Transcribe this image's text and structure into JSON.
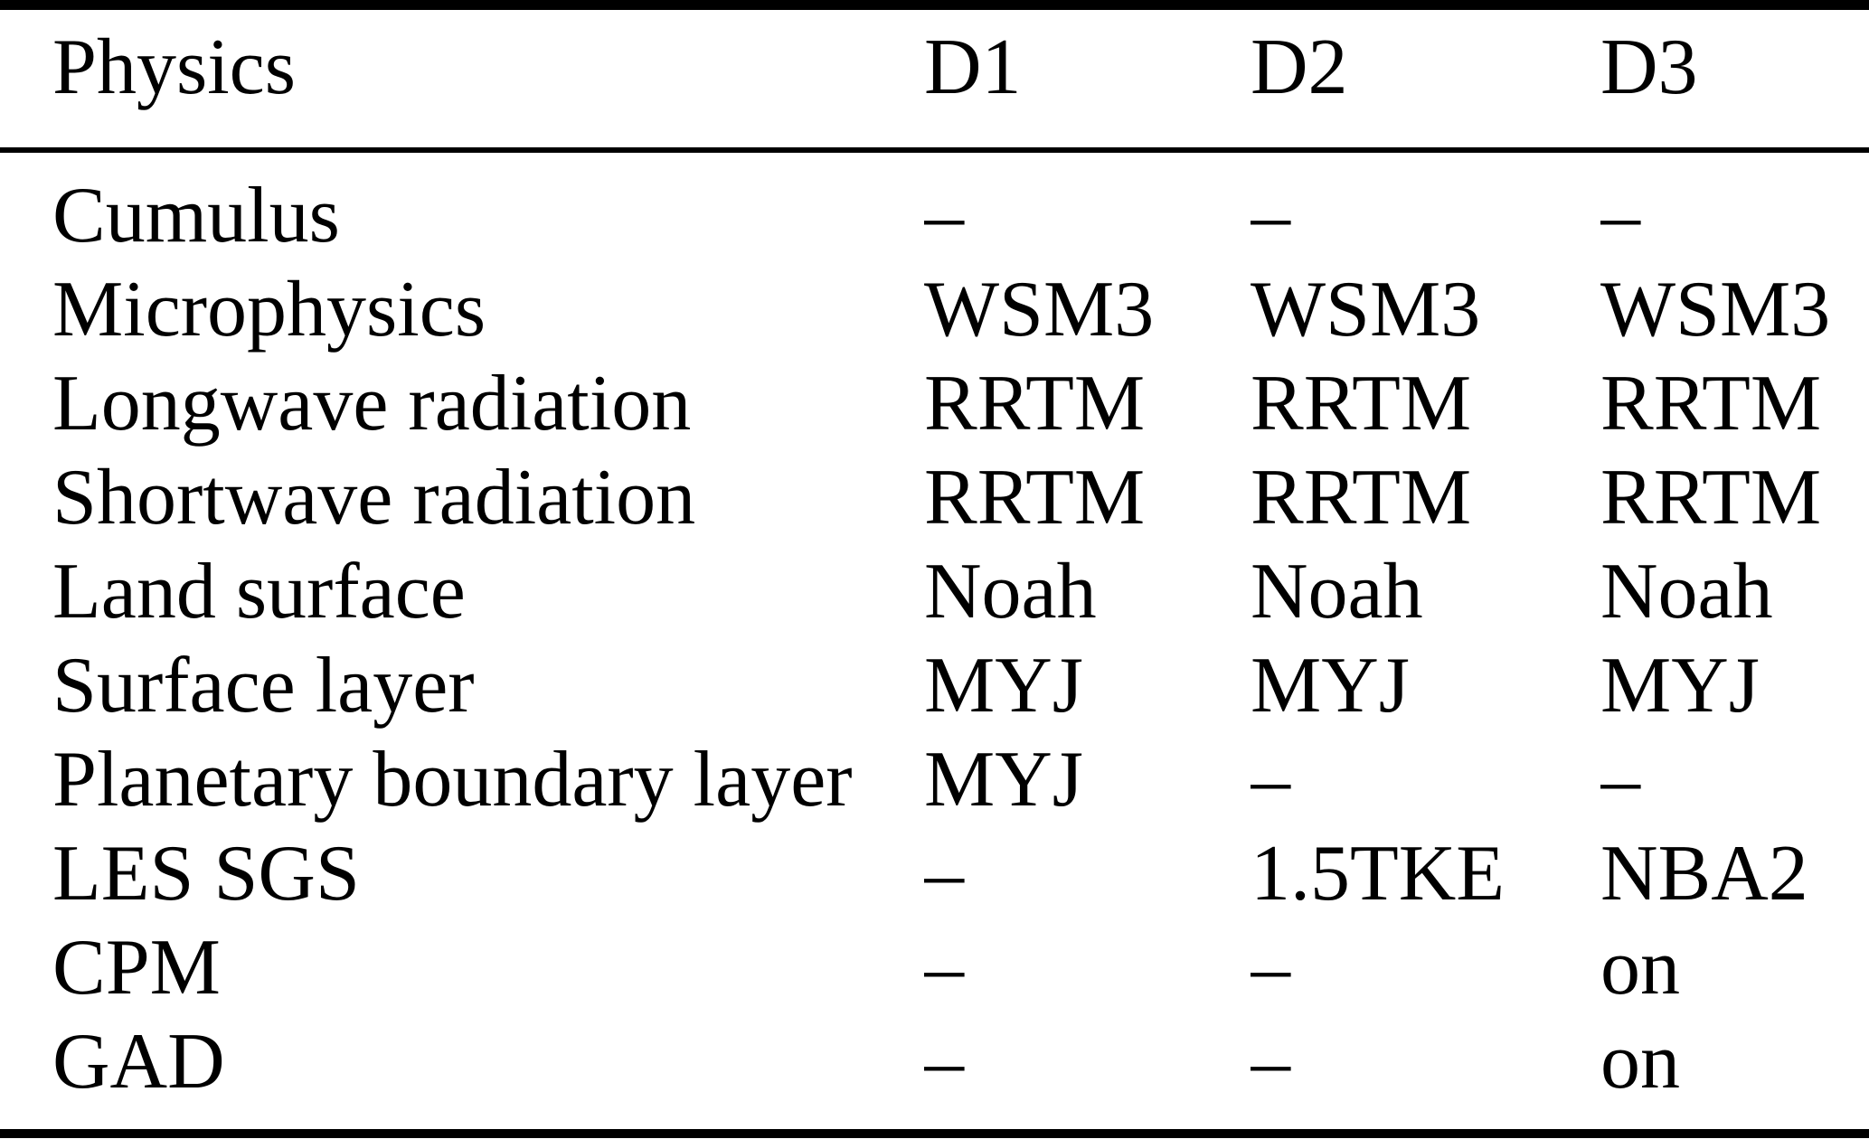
{
  "table": {
    "columns": [
      "Physics",
      "D1",
      "D2",
      "D3"
    ],
    "rows": [
      {
        "cells": [
          "Cumulus",
          "–",
          "–",
          "–"
        ]
      },
      {
        "cells": [
          "Microphysics",
          "WSM3",
          "WSM3",
          "WSM3"
        ]
      },
      {
        "cells": [
          "Longwave radiation",
          "RRTM",
          "RRTM",
          "RRTM"
        ]
      },
      {
        "cells": [
          "Shortwave radiation",
          "RRTM",
          "RRTM",
          "RRTM"
        ]
      },
      {
        "cells": [
          "Land surface",
          "Noah",
          "Noah",
          "Noah"
        ]
      },
      {
        "cells": [
          "Surface layer",
          "MYJ",
          "MYJ",
          "MYJ"
        ]
      },
      {
        "cells": [
          "Planetary boundary layer",
          "MYJ",
          "–",
          "–"
        ]
      },
      {
        "cells": [
          "LES SGS",
          "–",
          "1.5TKE",
          "NBA2"
        ]
      },
      {
        "cells": [
          "CPM",
          "–",
          "–",
          "on"
        ]
      },
      {
        "cells": [
          "GAD",
          "–",
          "–",
          "on"
        ]
      }
    ],
    "colors": {
      "text": "#000000",
      "background": "#ffffff",
      "rule": "#000000"
    }
  }
}
